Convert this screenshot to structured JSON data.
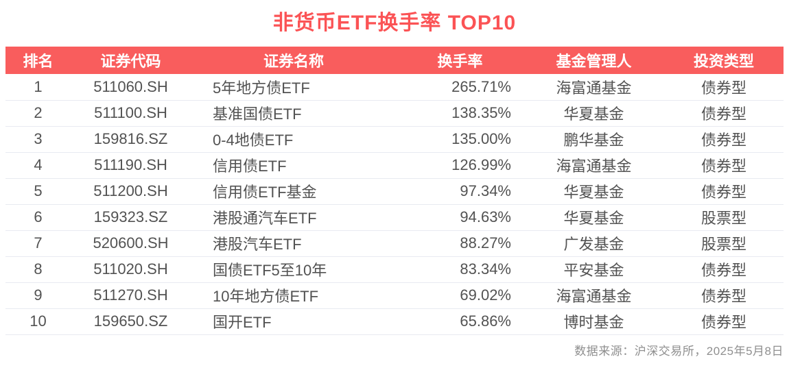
{
  "chart_data": {
    "type": "table",
    "title": "非货币ETF换手率 TOP10",
    "columns": [
      "排名",
      "证券代码",
      "证券名称",
      "换手率",
      "基金管理人",
      "投资类型"
    ],
    "rows": [
      [
        "1",
        "511060.SH",
        "5年地方债ETF",
        "265.71%",
        "海富通基金",
        "债券型"
      ],
      [
        "2",
        "511100.SH",
        "基准国债ETF",
        "138.35%",
        "华夏基金",
        "债券型"
      ],
      [
        "3",
        "159816.SZ",
        "0-4地债ETF",
        "135.00%",
        "鹏华基金",
        "债券型"
      ],
      [
        "4",
        "511190.SH",
        "信用债ETF",
        "126.99%",
        "海富通基金",
        "债券型"
      ],
      [
        "5",
        "511200.SH",
        "信用债ETF基金",
        "97.34%",
        "华夏基金",
        "债券型"
      ],
      [
        "6",
        "159323.SZ",
        "港股通汽车ETF",
        "94.63%",
        "华夏基金",
        "股票型"
      ],
      [
        "7",
        "520600.SH",
        "港股汽车ETF",
        "88.27%",
        "广发基金",
        "股票型"
      ],
      [
        "8",
        "511020.SH",
        "国债ETF5至10年",
        "83.34%",
        "平安基金",
        "债券型"
      ],
      [
        "9",
        "511270.SH",
        "10年地方债ETF",
        "69.02%",
        "海富通基金",
        "债券型"
      ],
      [
        "10",
        "159650.SZ",
        "国开ETF",
        "65.86%",
        "博时基金",
        "债券型"
      ]
    ]
  },
  "footer": {
    "source_note": "数据来源：沪深交易所，2025年5月8日"
  },
  "colors": {
    "title": "#fb5355",
    "header_bg": "#f95d5d",
    "header_text": "#ffffff",
    "body_text": "#525252",
    "row_divider": "#e8eaf1",
    "footer_text": "#8f8f8f",
    "background": "#ffffff"
  }
}
